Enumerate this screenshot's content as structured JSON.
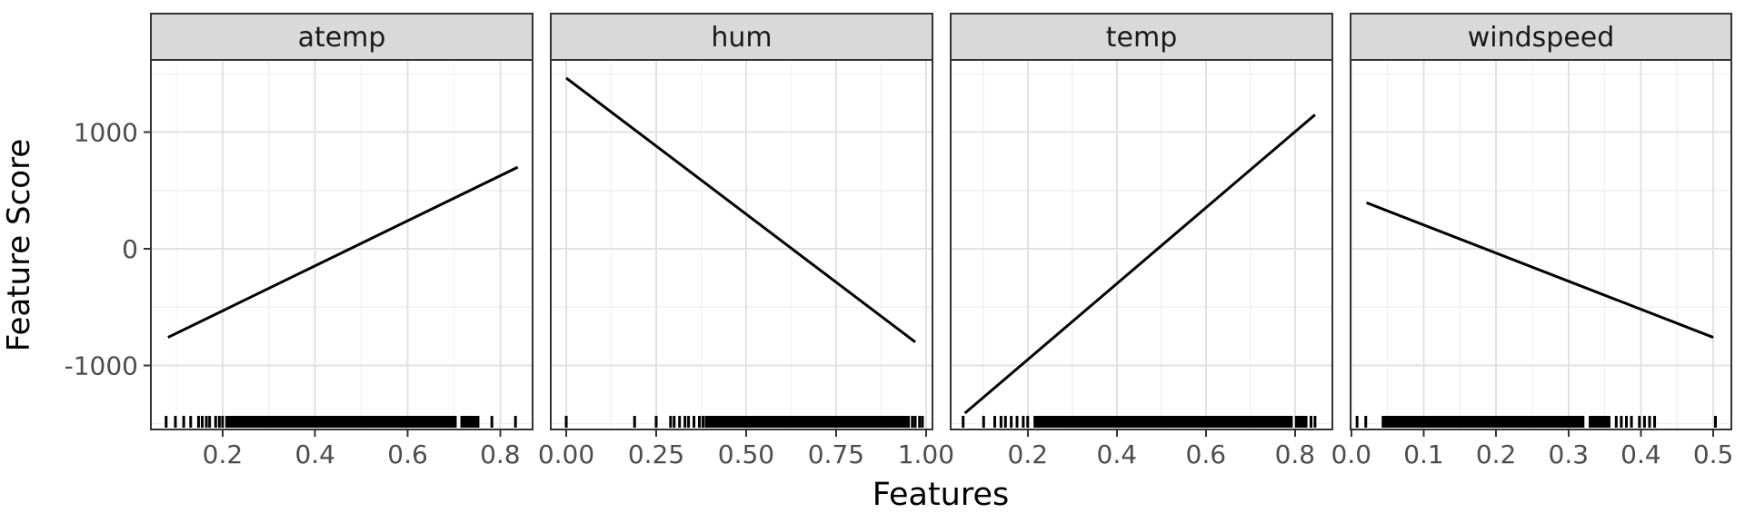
{
  "chart_data": {
    "type": "line",
    "title": "",
    "xlabel": "Features",
    "ylabel": "Feature Score",
    "ylim": [
      -1550,
      1620
    ],
    "y_ticks": [
      {
        "value": 1000,
        "label": "1000"
      },
      {
        "value": 0,
        "label": "0"
      },
      {
        "value": -1000,
        "label": "-1000"
      }
    ],
    "y_minor": [
      1500,
      500,
      -500,
      -1500
    ],
    "grid": true,
    "legend": "none",
    "facets": [
      {
        "label": "atemp",
        "xlim": [
          0.045,
          0.87
        ],
        "x_ticks": [
          {
            "value": 0.2,
            "label": "0.2"
          },
          {
            "value": 0.4,
            "label": "0.4"
          },
          {
            "value": 0.6,
            "label": "0.6"
          },
          {
            "value": 0.8,
            "label": "0.8"
          }
        ],
        "x_minor": [
          0.1,
          0.3,
          0.5,
          0.7
        ],
        "line": {
          "x1": 0.082,
          "y1": -760,
          "x2": 0.838,
          "y2": 700
        },
        "rug_dense": [
          [
            0.206,
            0.706
          ],
          [
            0.714,
            0.755
          ]
        ],
        "rug_marks": [
          0.078,
          0.098,
          0.116,
          0.131,
          0.148,
          0.156,
          0.165,
          0.172,
          0.185,
          0.193,
          0.2,
          0.782,
          0.833
        ]
      },
      {
        "label": "hum",
        "xlim": [
          -0.043,
          1.018
        ],
        "x_ticks": [
          {
            "value": 0.0,
            "label": "0.00"
          },
          {
            "value": 0.25,
            "label": "0.25"
          },
          {
            "value": 0.5,
            "label": "0.50"
          },
          {
            "value": 0.75,
            "label": "0.75"
          },
          {
            "value": 1.0,
            "label": "1.00"
          }
        ],
        "x_minor": [
          0.125,
          0.375,
          0.625,
          0.875
        ],
        "line": {
          "x1": 0.0,
          "y1": 1465,
          "x2": 0.97,
          "y2": -800
        },
        "rug_dense": [
          [
            0.385,
            0.955
          ]
        ],
        "rug_marks": [
          0.0,
          0.19,
          0.25,
          0.29,
          0.3,
          0.315,
          0.33,
          0.34,
          0.355,
          0.37,
          0.38,
          0.962,
          0.97,
          0.982,
          0.99
        ]
      },
      {
        "label": "temp",
        "xlim": [
          0.027,
          0.884
        ],
        "x_ticks": [
          {
            "value": 0.2,
            "label": "0.2"
          },
          {
            "value": 0.4,
            "label": "0.4"
          },
          {
            "value": 0.6,
            "label": "0.6"
          },
          {
            "value": 0.8,
            "label": "0.8"
          }
        ],
        "x_minor": [
          0.1,
          0.3,
          0.5,
          0.7
        ],
        "line": {
          "x1": 0.059,
          "y1": -1410,
          "x2": 0.845,
          "y2": 1150
        },
        "rug_dense": [
          [
            0.213,
            0.795
          ],
          [
            0.8,
            0.828
          ]
        ],
        "rug_marks": [
          0.055,
          0.101,
          0.126,
          0.14,
          0.15,
          0.163,
          0.176,
          0.19,
          0.2,
          0.836,
          0.845
        ]
      },
      {
        "label": "windspeed",
        "xlim": [
          -0.001,
          0.525
        ],
        "x_ticks": [
          {
            "value": 0.0,
            "label": "0.0"
          },
          {
            "value": 0.1,
            "label": "0.1"
          },
          {
            "value": 0.2,
            "label": "0.2"
          },
          {
            "value": 0.3,
            "label": "0.3"
          },
          {
            "value": 0.4,
            "label": "0.4"
          },
          {
            "value": 0.5,
            "label": "0.5"
          }
        ],
        "x_minor": [
          0.05,
          0.15,
          0.25,
          0.35,
          0.45
        ],
        "line": {
          "x1": 0.021,
          "y1": 395,
          "x2": 0.5,
          "y2": -760
        },
        "rug_dense": [
          [
            0.042,
            0.322
          ],
          [
            0.328,
            0.358
          ]
        ],
        "rug_marks": [
          0.008,
          0.02,
          0.366,
          0.373,
          0.38,
          0.387,
          0.398,
          0.405,
          0.412,
          0.419,
          0.503
        ]
      }
    ],
    "colors": {
      "strip_fill": "#d9d9d9",
      "panel_border": "#333333",
      "grid_major": "#e2e2e2",
      "grid_minor": "#f0f0f0",
      "line": "#000000",
      "rug": "#000000",
      "tick_label": "#4d4d4d",
      "axis_title": "#000000",
      "strip_text": "#1a1a1a",
      "background": "#ffffff"
    }
  }
}
